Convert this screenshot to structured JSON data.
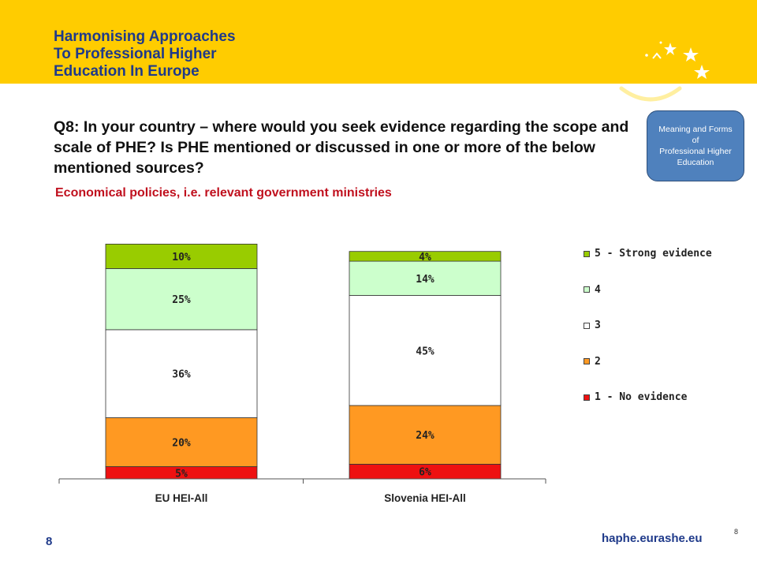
{
  "header": {
    "logo_lines": [
      "Harmonising Approaches",
      "To Professional Higher",
      "Education In Europe"
    ]
  },
  "question": {
    "label": "Q8",
    "text": ": In your country – where would you seek evidence regarding the scope and scale of PHE? Is PHE mentioned or discussed in one or more of the below mentioned sources?"
  },
  "subtitle": "Economical policies, i.e. relevant government ministries",
  "badge": {
    "lines": [
      "Meaning and Forms",
      "of",
      "Professional Higher",
      "Education"
    ]
  },
  "colors": {
    "banner": "#FFCC00",
    "navy": "#1F3A8A",
    "subtitle_red": "#C0101E",
    "badge_blue": "#4F81BD"
  },
  "chart_data": {
    "type": "bar",
    "stacked": true,
    "categories": [
      "EU HEI-All",
      "Slovenia HEI-All"
    ],
    "series": [
      {
        "name": "1 - No evidence",
        "color": "#EE1111",
        "values": [
          5,
          6
        ],
        "labels": [
          "5%",
          "6%"
        ]
      },
      {
        "name": "2",
        "color": "#FF9922",
        "values": [
          20,
          24
        ],
        "labels": [
          "20%",
          "24%"
        ]
      },
      {
        "name": "3",
        "color": "#FFFFFF",
        "values": [
          36,
          45
        ],
        "labels": [
          "36%",
          "45%"
        ]
      },
      {
        "name": "4",
        "color": "#CCFFCC",
        "values": [
          25,
          14
        ],
        "labels": [
          "25%",
          "14%"
        ]
      },
      {
        "name": "5 - Strong evidence",
        "color": "#99CC00",
        "values": [
          10,
          4
        ],
        "labels": [
          "10%",
          "4%"
        ]
      }
    ],
    "ylim": [
      0,
      100
    ],
    "legend_position": "right",
    "grid": false
  },
  "footer": {
    "page_number": "8",
    "url": "haphe.eurashe.eu",
    "small_number": "8"
  }
}
